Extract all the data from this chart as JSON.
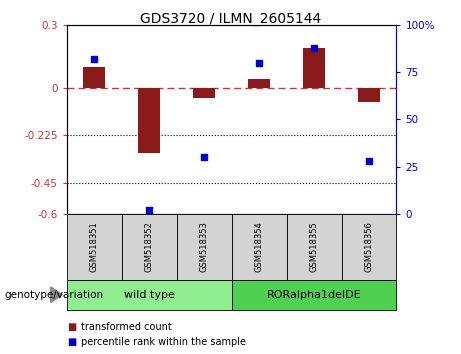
{
  "title": "GDS3720 / ILMN_2605144",
  "samples": [
    "GSM518351",
    "GSM518352",
    "GSM518353",
    "GSM518354",
    "GSM518355",
    "GSM518356"
  ],
  "red_values": [
    0.1,
    -0.31,
    -0.05,
    0.04,
    0.19,
    -0.065
  ],
  "blue_values_pct": [
    82,
    2,
    30,
    80,
    88,
    28
  ],
  "groups": [
    {
      "label": "wild type",
      "samples": [
        0,
        1,
        2
      ],
      "color": "#90EE90"
    },
    {
      "label": "RORalpha1delDE",
      "samples": [
        3,
        4,
        5
      ],
      "color": "#50D050"
    }
  ],
  "group_label": "genotype/variation",
  "ylim_left": [
    -0.6,
    0.3
  ],
  "ylim_right": [
    0,
    100
  ],
  "yticks_left": [
    0.3,
    0,
    -0.225,
    -0.45,
    -0.6
  ],
  "yticks_right": [
    100,
    75,
    50,
    25,
    0
  ],
  "hlines_dotted": [
    -0.225,
    -0.45
  ],
  "hline_zero_color": "#CC3333",
  "bar_color": "#8B1A1A",
  "dot_color": "#0000CC",
  "box_color": "#D3D3D3",
  "legend_red_label": "transformed count",
  "legend_blue_label": "percentile rank within the sample",
  "title_fontsize": 10,
  "tick_fontsize": 7.5,
  "sample_fontsize": 6,
  "group_fontsize": 8,
  "legend_fontsize": 7,
  "genotype_fontsize": 7.5,
  "bar_width": 0.4,
  "dot_size": 15
}
